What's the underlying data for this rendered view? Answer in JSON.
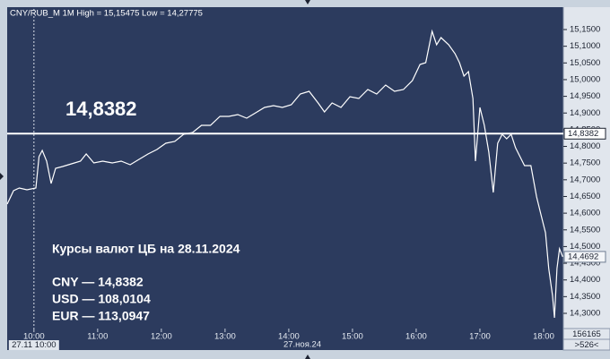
{
  "chart_data": {
    "type": "line",
    "title": "CNY/RUB_M 1M High = 15,15475 Low = 14,27775",
    "x": [
      9.58,
      9.68,
      9.77,
      9.89,
      10.03,
      10.08,
      10.13,
      10.2,
      10.27,
      10.34,
      10.45,
      10.59,
      10.73,
      10.82,
      10.94,
      11.08,
      11.23,
      11.37,
      11.51,
      11.65,
      11.79,
      11.93,
      12.07,
      12.21,
      12.35,
      12.49,
      12.63,
      12.77,
      12.92,
      13.06,
      13.2,
      13.34,
      13.48,
      13.62,
      13.76,
      13.9,
      14.04,
      14.18,
      14.32,
      14.46,
      14.56,
      14.68,
      14.82,
      14.96,
      15.1,
      15.24,
      15.38,
      15.52,
      15.66,
      15.8,
      15.94,
      16.06,
      16.15,
      16.25,
      16.32,
      16.39,
      16.51,
      16.61,
      16.68,
      16.75,
      16.82,
      16.89,
      16.93,
      17.0,
      17.07,
      17.14,
      17.21,
      17.28,
      17.35,
      17.42,
      17.49,
      17.56,
      17.63,
      17.7,
      17.8,
      17.89,
      17.96,
      18.03,
      18.08,
      18.14,
      18.17,
      18.21,
      18.25,
      18.3
    ],
    "values": [
      14.6272,
      14.6674,
      14.6755,
      14.6701,
      14.6755,
      14.7693,
      14.7881,
      14.7559,
      14.6889,
      14.7344,
      14.7398,
      14.7478,
      14.7559,
      14.7773,
      14.7505,
      14.7559,
      14.7505,
      14.7559,
      14.7452,
      14.7613,
      14.7773,
      14.7907,
      14.8095,
      14.8149,
      14.8363,
      14.8417,
      14.8631,
      14.8631,
      14.8899,
      14.8899,
      14.8953,
      14.8846,
      14.9007,
      14.9168,
      14.9221,
      14.9168,
      14.9248,
      14.957,
      14.965,
      14.9302,
      14.9033,
      14.9302,
      14.9168,
      14.9489,
      14.9436,
      14.9704,
      14.957,
      14.9838,
      14.965,
      14.9704,
      14.9972,
      15.0454,
      15.0508,
      15.1446,
      15.1044,
      15.1259,
      15.1044,
      15.0776,
      15.0508,
      15.0106,
      15.024,
      14.9436,
      14.7559,
      14.9168,
      14.8631,
      14.7827,
      14.6621,
      14.8095,
      14.8363,
      14.8229,
      14.8363,
      14.7961,
      14.7693,
      14.7425,
      14.7425,
      14.6487,
      14.595,
      14.5414,
      14.4342,
      14.3537,
      14.2867,
      14.4342,
      14.4932,
      14.4692
    ],
    "color": "#ffffff",
    "xlim": [
      9.58,
      18.31
    ],
    "xticks": [
      {
        "value": 10,
        "label": "10:00"
      },
      {
        "value": 11,
        "label": "11:00"
      },
      {
        "value": 12,
        "label": "12:00"
      },
      {
        "value": 13,
        "label": "13:00"
      },
      {
        "value": 14,
        "label": "14:00"
      },
      {
        "value": 15,
        "label": "15:00"
      },
      {
        "value": 16,
        "label": "16:00"
      },
      {
        "value": 17,
        "label": "17:00"
      },
      {
        "value": 18,
        "label": "18:00"
      }
    ],
    "ylim": [
      14.2544,
      15.2117
    ],
    "yticks": [
      {
        "value": 15.15,
        "label": "15,1500"
      },
      {
        "value": 15.1,
        "label": "15,1000"
      },
      {
        "value": 15.05,
        "label": "15,0500"
      },
      {
        "value": 15.0,
        "label": "15,0000"
      },
      {
        "value": 14.95,
        "label": "14,9500"
      },
      {
        "value": 14.9,
        "label": "14,9000"
      },
      {
        "value": 14.85,
        "label": "14,8500"
      },
      {
        "value": 14.8,
        "label": "14,8000"
      },
      {
        "value": 14.75,
        "label": "14,7500"
      },
      {
        "value": 14.7,
        "label": "14,7000"
      },
      {
        "value": 14.65,
        "label": "14,6500"
      },
      {
        "value": 14.6,
        "label": "14,6000"
      },
      {
        "value": 14.55,
        "label": "14,5500"
      },
      {
        "value": 14.5,
        "label": "14,5000"
      },
      {
        "value": 14.45,
        "label": "14,4500"
      },
      {
        "value": 14.4,
        "label": "14,4000"
      },
      {
        "value": 14.35,
        "label": "14,3500"
      },
      {
        "value": 14.3,
        "label": "14,3000"
      }
    ],
    "y_axis_side": "right",
    "reference_line": {
      "value": 14.8382,
      "label": "14,8382"
    },
    "last_value": {
      "value": 14.4692,
      "label": "14,4692"
    },
    "cursor": {
      "value": 10,
      "label": "27.11 10:00"
    },
    "date_label": "27.ноя.24",
    "annotations": [
      "Курсы валют ЦБ на 28.11.2024",
      "CNY — 14,8382",
      "USD — 108,0104",
      "EUR — 113,0947"
    ],
    "footer": [
      "156165",
      ">526<"
    ]
  }
}
